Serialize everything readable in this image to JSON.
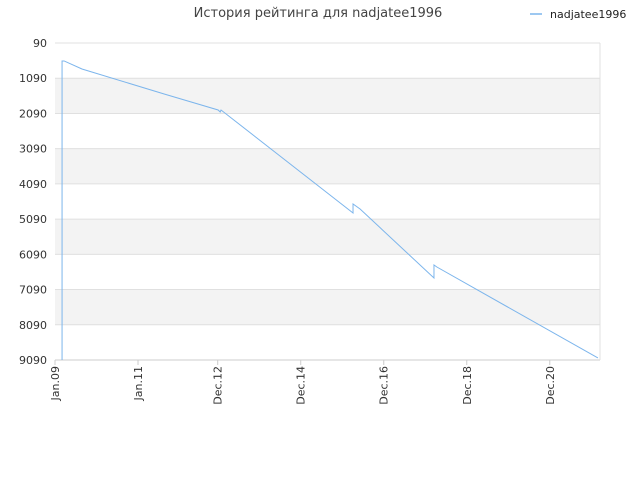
{
  "chart_data": {
    "type": "line",
    "title": "История рейтинга для nadjatee1996",
    "x": [
      2009.17,
      2009.17,
      2009.22,
      2009.65,
      2011.63,
      2012.93,
      2012.98,
      2013.0,
      2016.18,
      2016.18,
      2016.35,
      2018.13,
      2018.13,
      2018.2,
      2022.08
    ],
    "series": [
      {
        "name": "nadjatee1996",
        "color": "#7cb5ec",
        "values": [
          9090,
          601,
          600,
          828,
          1538,
          1992,
          2049,
          1992,
          4917,
          4661,
          4803,
          6762,
          6393,
          6450,
          9033
        ]
      }
    ],
    "xlim": [
      2009.0,
      2022.13
    ],
    "xticks": [
      {
        "value": 2009.0,
        "label": "Jan.09"
      },
      {
        "value": 2011.0,
        "label": "Jan.11"
      },
      {
        "value": 2012.92,
        "label": "Dec.12"
      },
      {
        "value": 2014.92,
        "label": "Dec.14"
      },
      {
        "value": 2016.92,
        "label": "Dec.16"
      },
      {
        "value": 2018.92,
        "label": "Dec.18"
      },
      {
        "value": 2020.92,
        "label": "Dec.20"
      }
    ],
    "ylim": [
      90,
      9090
    ],
    "y_reversed": true,
    "yticks": [
      90,
      1090,
      2090,
      3090,
      4090,
      5090,
      6090,
      7090,
      8090,
      9090
    ],
    "grid": true,
    "legend": "top-right"
  }
}
